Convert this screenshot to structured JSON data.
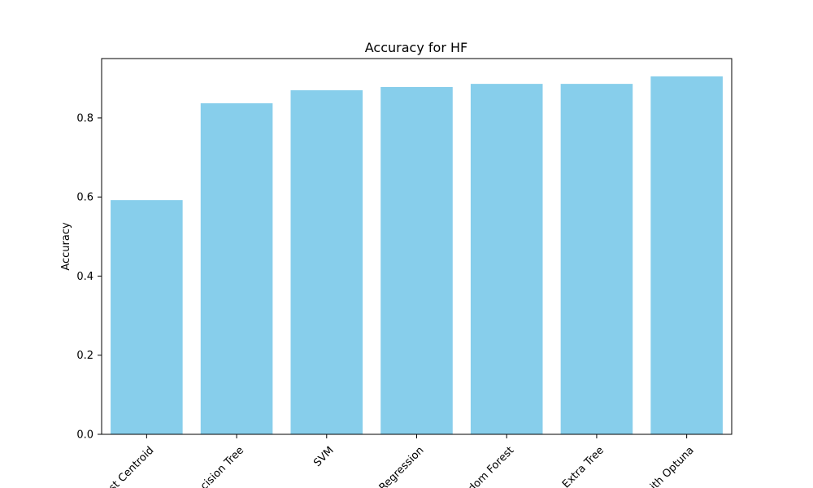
{
  "chart_data": {
    "type": "bar",
    "title": "Accuracy for HF",
    "xlabel": "",
    "ylabel": "Accuracy",
    "categories": [
      "st Centroid",
      "cision Tree",
      "SVM",
      "Regression",
      "dom Forest",
      "Extra Tree",
      "ith Optuna"
    ],
    "values": [
      0.592,
      0.837,
      0.87,
      0.878,
      0.886,
      0.886,
      0.905
    ],
    "ylim": [
      0,
      0.95
    ],
    "yticks": [
      0.0,
      0.2,
      0.4,
      0.6,
      0.8
    ],
    "ytick_labels": [
      "0.0",
      "0.2",
      "0.4",
      "0.6",
      "0.8"
    ],
    "bar_color": "#87ceeb",
    "grid": false,
    "legend": "none"
  }
}
